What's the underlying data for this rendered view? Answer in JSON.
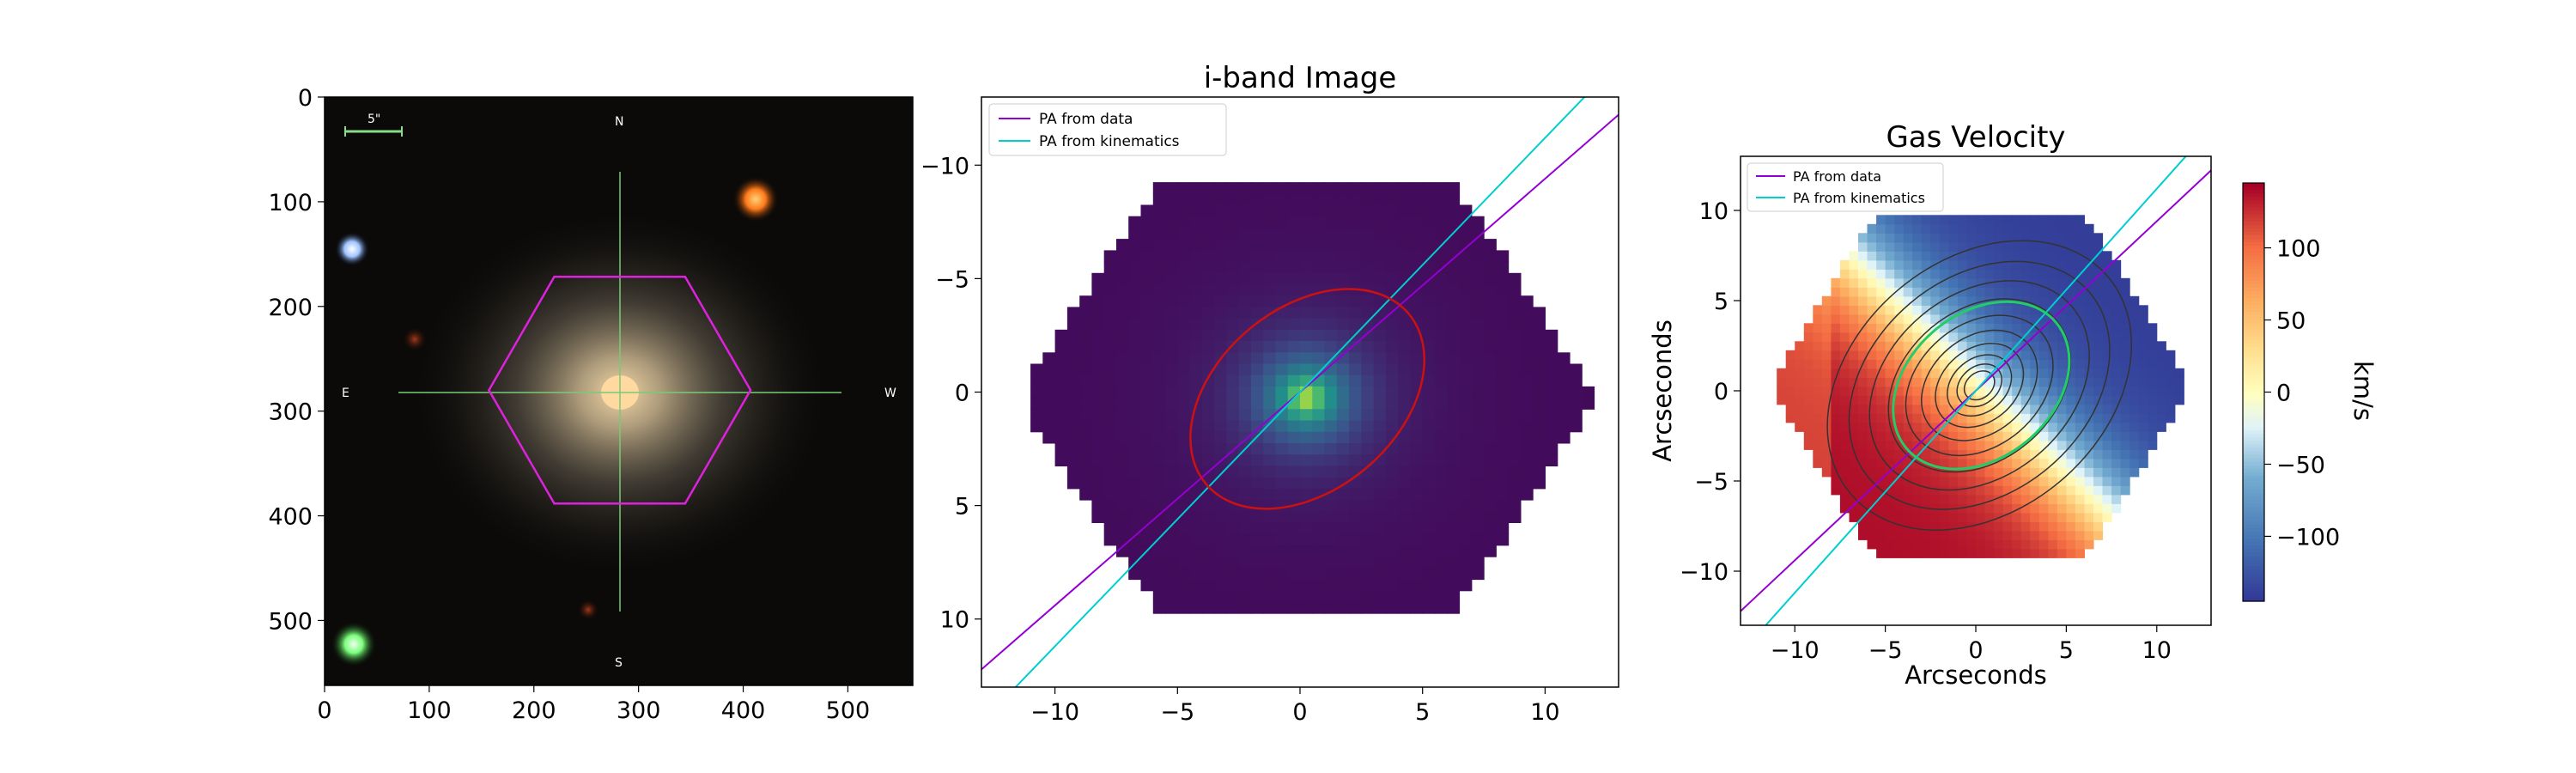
{
  "chart_data": [
    {
      "type": "image",
      "panel": "sdss-color-image",
      "title": "",
      "x_ticks": [
        "0",
        "100",
        "200",
        "300",
        "400",
        "500"
      ],
      "x_tick_values": [
        0,
        100,
        200,
        300,
        400,
        500
      ],
      "y_ticks": [
        "0",
        "100",
        "200",
        "300",
        "400",
        "500"
      ],
      "y_tick_values": [
        0,
        100,
        200,
        300,
        400,
        500
      ],
      "xlim": [
        0,
        562
      ],
      "ylim": [
        562,
        0
      ],
      "compass": {
        "north": "N",
        "south": "S",
        "east": "E",
        "west": "W"
      },
      "scale_bar_label": "5\"",
      "ifu_hexagon_center": [
        282,
        280
      ],
      "ifu_hexagon_radius": 125,
      "galaxy_center": [
        282,
        280
      ]
    },
    {
      "type": "heatmap",
      "panel": "i-band-image",
      "title": "i-band Image",
      "xlabel": "",
      "ylabel": "",
      "x_ticks": [
        "−10",
        "−5",
        "0",
        "5",
        "10"
      ],
      "x_tick_values": [
        -10,
        -5,
        0,
        5,
        10
      ],
      "y_ticks": [
        "−10",
        "−5",
        "0",
        "5",
        "10"
      ],
      "y_tick_values": [
        -10,
        -5,
        0,
        5,
        10
      ],
      "xlim": [
        -13,
        13
      ],
      "ylim": [
        13,
        -13
      ],
      "colormap": "viridis",
      "legend_location": "upper left",
      "legend": [
        {
          "label": "PA from data",
          "color": "#9400d3"
        },
        {
          "label": "PA from kinematics",
          "color": "#00ced1"
        }
      ],
      "pa_lines": [
        {
          "name": "PA from data",
          "slope": -0.94,
          "intercept": 0.0
        },
        {
          "name": "PA from kinematics",
          "slope": -1.12,
          "intercept": 0.0
        }
      ],
      "ellipse": {
        "center": [
          0.3,
          0.3
        ],
        "semi_major": 5.4,
        "semi_minor": 4.0,
        "angle_deg": -40,
        "color": "#cc1111"
      }
    },
    {
      "type": "heatmap",
      "panel": "gas-velocity",
      "title": "Gas Velocity",
      "xlabel": "Arcseconds",
      "ylabel": "Arcseconds",
      "x_ticks": [
        "−10",
        "−5",
        "0",
        "5",
        "10"
      ],
      "x_tick_values": [
        -10,
        -5,
        0,
        5,
        10
      ],
      "y_ticks": [
        "10",
        "5",
        "0",
        "−5",
        "−10"
      ],
      "y_tick_values": [
        10,
        5,
        0,
        -5,
        -10
      ],
      "xlim": [
        -13,
        13
      ],
      "ylim": [
        -13,
        13
      ],
      "colormap": "RdYlBu_r",
      "velocity_range": [
        -145,
        145
      ],
      "velocity_gradient_angle_deg": 45,
      "legend_location": "upper left",
      "legend": [
        {
          "label": "PA from data",
          "color": "#9400d3"
        },
        {
          "label": "PA from kinematics",
          "color": "#00ced1"
        }
      ],
      "pa_lines": [
        {
          "name": "PA from data",
          "slope": 0.94,
          "intercept": 0.0
        },
        {
          "name": "PA from kinematics",
          "slope": 1.12,
          "intercept": 0.0
        }
      ],
      "ellipse": {
        "center": [
          0.3,
          0.3
        ],
        "semi_major": 5.4,
        "semi_minor": 4.0,
        "angle_deg": 40,
        "color": "#22cc66"
      },
      "contour_levels": 10,
      "colorbar": {
        "label": "km/s",
        "ticks": [
          "100",
          "50",
          "0",
          "−50",
          "−100"
        ],
        "tick_values": [
          100,
          50,
          0,
          -50,
          -100
        ],
        "range": [
          -145,
          145
        ]
      }
    }
  ]
}
